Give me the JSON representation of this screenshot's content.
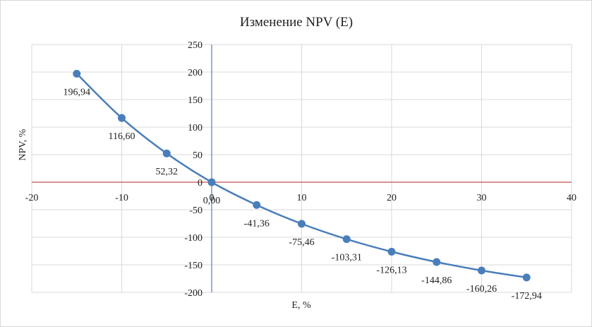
{
  "chart_data": {
    "type": "scatter",
    "title": "Изменение NPV (E)",
    "xlabel": "E, %",
    "ylabel": "NPV, %",
    "xlim": [
      -20,
      40
    ],
    "ylim": [
      -200,
      250
    ],
    "x_ticks": [
      -20,
      -10,
      0,
      10,
      20,
      30,
      40
    ],
    "y_ticks": [
      -200,
      -150,
      -100,
      -50,
      0,
      50,
      100,
      150,
      200,
      250
    ],
    "x_tick_labels": [
      "-20",
      "-10",
      "0",
      "10",
      "20",
      "30",
      "40"
    ],
    "y_tick_labels": [
      "-200",
      "-150",
      "-100",
      "-50",
      "0",
      "50",
      "100",
      "150",
      "200",
      "250"
    ],
    "grid": true,
    "smooth": true,
    "series": [
      {
        "x": [
          -15,
          -10,
          -5,
          0,
          5,
          10,
          15,
          20,
          25,
          30,
          35
        ],
        "y": [
          196.94,
          116.6,
          52.32,
          0.0,
          -41.36,
          -75.46,
          -103.31,
          -126.13,
          -144.86,
          -160.26,
          -172.94
        ],
        "labels": [
          "196,94",
          "116,60",
          "52,32",
          "0,00",
          "-41,36",
          "-75,46",
          "-103,31",
          "-126,13",
          "-144,86",
          "-160,26",
          "-172,94"
        ]
      }
    ],
    "colors": {
      "series": "#4a7ebb",
      "zero_line_x": "#c0504d",
      "zero_line_y": "#4f81bd",
      "grid": "#d9d9d9"
    }
  }
}
